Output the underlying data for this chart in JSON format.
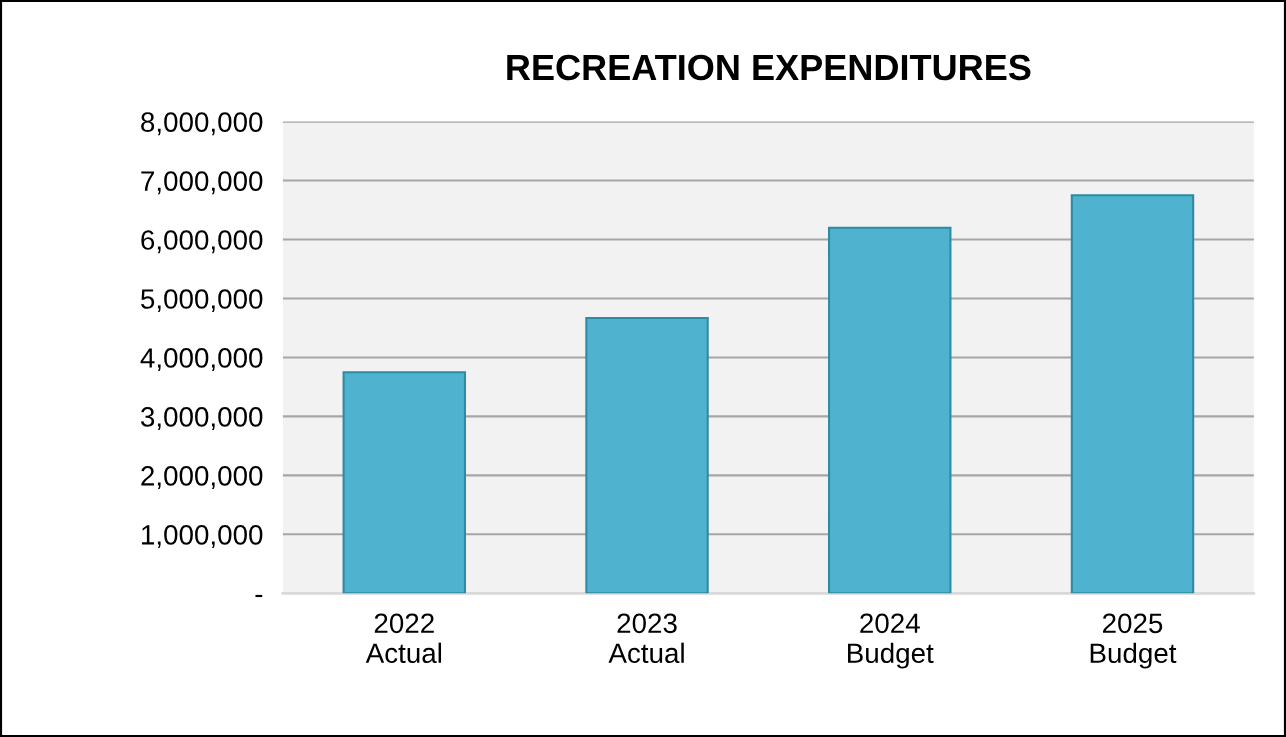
{
  "chart_data": {
    "type": "bar",
    "title": "RECREATION EXPENDITURES",
    "categories": [
      "2022\nActual",
      "2023\nActual",
      "2024\nBudget",
      "2025\nBudget"
    ],
    "values": [
      3750000,
      4670000,
      6200000,
      6750000
    ],
    "color": "#4fb3cf",
    "ylim": [
      0,
      8000000
    ],
    "yticks": [
      {
        "value": 0,
        "label": "-"
      },
      {
        "value": 1000000,
        "label": "1,000,000"
      },
      {
        "value": 2000000,
        "label": "2,000,000"
      },
      {
        "value": 3000000,
        "label": "3,000,000"
      },
      {
        "value": 4000000,
        "label": "4,000,000"
      },
      {
        "value": 5000000,
        "label": "5,000,000"
      },
      {
        "value": 6000000,
        "label": "6,000,000"
      },
      {
        "value": 7000000,
        "label": "7,000,000"
      },
      {
        "value": 8000000,
        "label": "8,000,000"
      }
    ],
    "grid": "y"
  }
}
